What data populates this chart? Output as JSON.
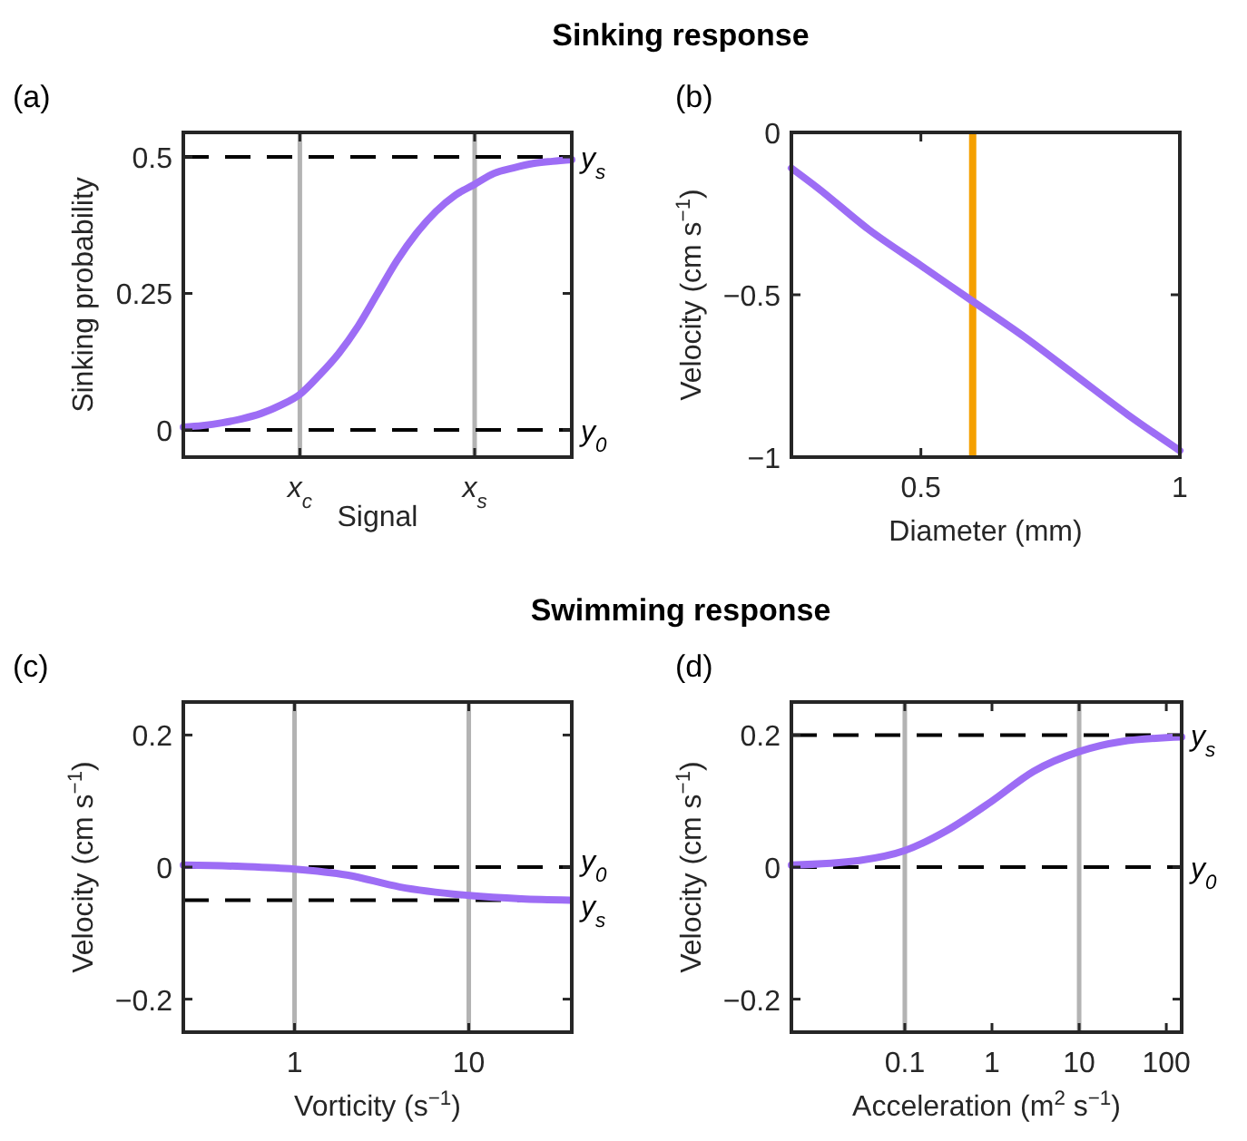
{
  "chart_data": [
    {
      "type": "line",
      "title": "Sinking response",
      "xlabel": "Signal",
      "ylabel": "Sinking probability",
      "annotations": [
        "(a)"
      ],
      "categories": [
        null,
        null,
        null,
        null,
        null,
        null,
        "x$_{c}$",
        null,
        null,
        null,
        null,
        null,
        null,
        null,
        null,
        "x$_{s}$",
        null,
        null,
        null,
        null,
        null
      ],
      "series": [
        {
          "color": "#9d6df5",
          "values": [
            0.005,
            0.008,
            0.013,
            0.02,
            0.03,
            0.045,
            0.065,
            0.1,
            0.14,
            0.19,
            0.25,
            0.31,
            0.36,
            0.4,
            0.43,
            0.45,
            0.47,
            0.48,
            0.488,
            0.492,
            0.495
          ]
        }
      ],
      "ylim": [
        -0.05,
        0.545
      ],
      "yticks": [
        0,
        0.25,
        0.5
      ],
      "grid": false,
      "line_style": "solid",
      "marker": "none",
      "ref_lines": [
        {
          "axis": "x",
          "value": "x$_{c}$",
          "color": "#b3b3b3",
          "line_style": "solid"
        },
        {
          "axis": "x",
          "value": "x$_{s}$",
          "color": "#b3b3b3",
          "line_style": "solid"
        },
        {
          "axis": "y",
          "value": 0.5,
          "label": "y$_{s}$",
          "color": "#000000",
          "line_style": "dashed"
        },
        {
          "axis": "y",
          "value": 0,
          "label": "y$_{0}$",
          "color": "#000000",
          "line_style": "dashed"
        }
      ]
    },
    {
      "type": "line",
      "xlabel": "Diameter (mm)",
      "ylabel": "Velocity (cm s$^{−1}$)",
      "annotations": [
        "(b)"
      ],
      "x": [
        0.25,
        0.3,
        0.4,
        0.5,
        0.6,
        0.7,
        0.8,
        0.9,
        1
      ],
      "series": [
        {
          "color": "#9d6df5",
          "values": [
            -0.11,
            -0.17,
            -0.3,
            -0.41,
            -0.52,
            -0.63,
            -0.75,
            -0.87,
            -0.98
          ]
        }
      ],
      "xlim": [
        0.25,
        1
      ],
      "xticks": [
        0.5,
        1
      ],
      "ylim": [
        -1,
        0
      ],
      "yticks": [
        -1,
        -0.5,
        0
      ],
      "grid": false,
      "line_style": "solid",
      "marker": "none",
      "ref_lines": [
        {
          "axis": "x",
          "value": 0.6,
          "color": "#f5a000",
          "line_style": "solid"
        }
      ]
    },
    {
      "type": "line",
      "title": "Swimming response",
      "xlabel": "Vorticity (s$^{−1}$)",
      "ylabel": "Velocity (cm s$^{−1}$)",
      "annotations": [
        "(c)"
      ],
      "x": [
        0.23,
        0.5,
        1,
        2,
        4,
        10,
        20,
        38
      ],
      "series": [
        {
          "color": "#9d6df5",
          "values": [
            0.003,
            0.001,
            -0.003,
            -0.012,
            -0.03,
            -0.043,
            -0.048,
            -0.05
          ]
        }
      ],
      "log": "x",
      "xlim": [
        0.23,
        39
      ],
      "xticks": [
        1,
        10
      ],
      "ylim": [
        -0.25,
        0.25
      ],
      "yticks": [
        -0.2,
        0,
        0.2
      ],
      "grid": false,
      "line_style": "solid",
      "marker": "none",
      "ref_lines": [
        {
          "axis": "x",
          "value": 1,
          "color": "#b3b3b3",
          "line_style": "solid"
        },
        {
          "axis": "x",
          "value": 10,
          "color": "#b3b3b3",
          "line_style": "solid"
        },
        {
          "axis": "y",
          "value": 0,
          "label": "y$_{0}$",
          "color": "#000000",
          "line_style": "dashed"
        },
        {
          "axis": "y",
          "value": -0.05,
          "label": "y$_{s}$",
          "color": "#000000",
          "line_style": "dashed"
        }
      ]
    },
    {
      "type": "line",
      "xlabel": "Acceleration (m$^{2}$ s$^{−1}$)",
      "ylabel": "Velocity (cm s$^{−1}$)",
      "annotations": [
        "(d)"
      ],
      "x": [
        0.005,
        0.03,
        0.1,
        0.3,
        1,
        3,
        10,
        30,
        150
      ],
      "series": [
        {
          "color": "#9d6df5",
          "values": [
            0.003,
            0.01,
            0.025,
            0.055,
            0.1,
            0.145,
            0.175,
            0.19,
            0.197
          ]
        }
      ],
      "log": "x",
      "xlim": [
        0.005,
        150
      ],
      "xticks": [
        0.1,
        1,
        10,
        100
      ],
      "ylim": [
        -0.25,
        0.25
      ],
      "yticks": [
        -0.2,
        0,
        0.2
      ],
      "grid": false,
      "line_style": "solid",
      "marker": "none",
      "ref_lines": [
        {
          "axis": "x",
          "value": 0.1,
          "color": "#b3b3b3",
          "line_style": "solid"
        },
        {
          "axis": "x",
          "value": 10,
          "color": "#b3b3b3",
          "line_style": "solid"
        },
        {
          "axis": "y",
          "value": 0.2,
          "label": "y$_{s}$",
          "color": "#000000",
          "line_style": "dashed"
        },
        {
          "axis": "y",
          "value": 0,
          "label": "y$_{0}$",
          "color": "#000000",
          "line_style": "dashed"
        }
      ]
    }
  ]
}
